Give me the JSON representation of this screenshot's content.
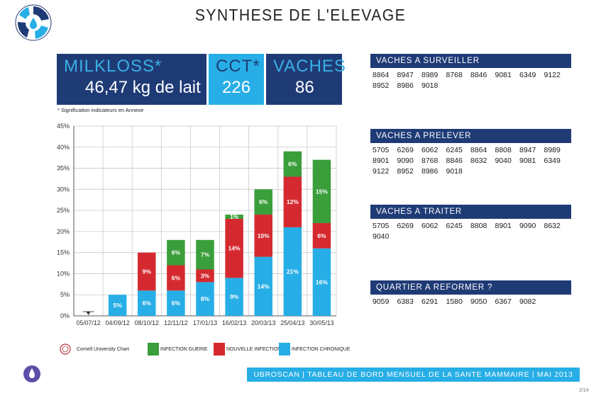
{
  "header": {
    "title": "SYNTHESE DE L'ELEVAGE"
  },
  "kpis": {
    "milkloss": {
      "label": "MILKLOSS*",
      "value": "46,47 kg de lait"
    },
    "cct": {
      "label": "CCT*",
      "value": "226"
    },
    "vaches": {
      "label": "VACHES",
      "value": "86"
    },
    "footnote": "* Signification indicateurs en Annexe"
  },
  "panels": [
    {
      "title": "VACHES A SURVEILLER",
      "ids": [
        "8864",
        "8947",
        "8989",
        "8768",
        "8846",
        "9081",
        "6349",
        "9122",
        "8952",
        "8986",
        "9018"
      ]
    },
    {
      "title": "VACHES A PRELEVER",
      "ids": [
        "5705",
        "6269",
        "6062",
        "6245",
        "8864",
        "8808",
        "8947",
        "8989",
        "8901",
        "9090",
        "8768",
        "8846",
        "8632",
        "9040",
        "9081",
        "6349",
        "9122",
        "8952",
        "8986",
        "9018"
      ]
    },
    {
      "title": "VACHES A TRAITER",
      "ids": [
        "5705",
        "6269",
        "6062",
        "6245",
        "8808",
        "8901",
        "9090",
        "8632",
        "9040"
      ]
    },
    {
      "title": "QUARTIER A REFORMER ?",
      "ids": [
        "9059",
        "6383",
        "6291",
        "1580",
        "9050",
        "6367",
        "9082"
      ]
    }
  ],
  "chart_data": {
    "type": "bar",
    "stacked": true,
    "categories": [
      "05/07/12",
      "04/09/12",
      "08/10/12",
      "12/11/12",
      "17/01/13",
      "16/02/13",
      "20/03/13",
      "25/04/13",
      "30/05/13"
    ],
    "series": [
      {
        "name": "INFECTION CHRONIQUE",
        "color": "#27aee6",
        "values": [
          0,
          5,
          6,
          6,
          8,
          9,
          14,
          21,
          16
        ],
        "labels": [
          "",
          "5%",
          "6%",
          "6%",
          "8%",
          "9%",
          "14%",
          "21%",
          "16%"
        ]
      },
      {
        "name": "NOUVELLE INFECTION",
        "color": "#d42a2f",
        "values": [
          0,
          0,
          9,
          6,
          3,
          14,
          10,
          12,
          6
        ],
        "labels": [
          "",
          "",
          "9%",
          "6%",
          "3%",
          "14%",
          "10%",
          "12%",
          "6%"
        ]
      },
      {
        "name": "INFECTION GUERIE",
        "color": "#3a9e3a",
        "values": [
          0,
          0,
          0,
          6,
          7,
          1,
          6,
          6,
          15
        ],
        "labels": [
          "",
          "",
          "",
          "6%",
          "7%",
          "1%",
          "6%",
          "6%",
          "15%"
        ]
      }
    ],
    "yticks": [
      "0%",
      "5%",
      "10%",
      "15%",
      "20%",
      "25%",
      "30%",
      "35%",
      "40%",
      "45%"
    ],
    "ylim": [
      0,
      45
    ],
    "grid": true,
    "title": "",
    "xlabel": "",
    "ylabel": ""
  },
  "legend": {
    "source": "Cornell University Chart",
    "items": [
      {
        "label": "INFECTION GUERIE",
        "color": "#3a9e3a"
      },
      {
        "label": "NOUVELLE INFECTION",
        "color": "#d42a2f"
      },
      {
        "label": "INFECTION CHRONIQUE",
        "color": "#27aee6"
      }
    ]
  },
  "footer": {
    "text": "UBROSCAN | TABLEAU DE BORD MENSUEL DE LA SANTE MAMMAIRE | MAI 2013",
    "page": "2/14"
  }
}
